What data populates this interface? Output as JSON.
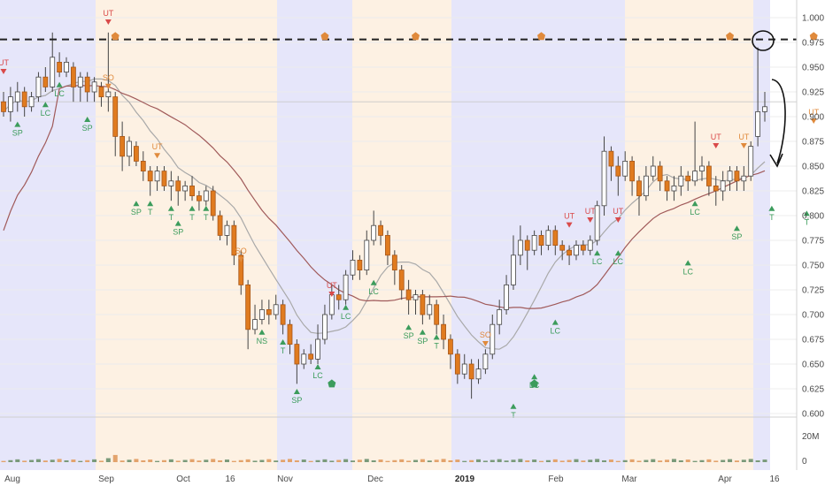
{
  "chart_data": {
    "type": "candlestick",
    "title": "",
    "y_ticks": [
      "1.000",
      "0.975",
      "0.950",
      "0.925",
      "0.900",
      "0.875",
      "0.850",
      "0.825",
      "0.800",
      "0.775",
      "0.750",
      "0.725",
      "0.700",
      "0.675",
      "0.650",
      "0.625",
      "0.600"
    ],
    "ylim": [
      0.6,
      1.0
    ],
    "volume_ticks": [
      "20M",
      "0"
    ],
    "x_ticks": [
      "Aug",
      "Sep",
      "Oct",
      "16",
      "Nov",
      "Dec",
      "2019",
      "Feb",
      "Mar",
      "Apr",
      "16"
    ],
    "resistance_level": 0.978,
    "candles": [
      [
        0.915,
        0.905,
        0.925,
        0.9
      ],
      [
        0.905,
        0.92,
        0.93,
        0.895
      ],
      [
        0.915,
        0.925,
        0.935,
        0.905
      ],
      [
        0.925,
        0.91,
        0.93,
        0.9
      ],
      [
        0.91,
        0.92,
        0.925,
        0.905
      ],
      [
        0.92,
        0.94,
        0.945,
        0.915
      ],
      [
        0.94,
        0.93,
        0.95,
        0.925
      ],
      [
        0.93,
        0.96,
        0.985,
        0.925
      ],
      [
        0.955,
        0.945,
        0.965,
        0.94
      ],
      [
        0.945,
        0.955,
        0.96,
        0.94
      ],
      [
        0.95,
        0.93,
        0.955,
        0.915
      ],
      [
        0.93,
        0.94,
        0.945,
        0.915
      ],
      [
        0.94,
        0.925,
        0.945,
        0.915
      ],
      [
        0.925,
        0.935,
        0.94,
        0.915
      ],
      [
        0.93,
        0.92,
        0.935,
        0.91
      ],
      [
        0.92,
        0.925,
        0.985,
        0.905
      ],
      [
        0.92,
        0.88,
        0.925,
        0.86
      ],
      [
        0.88,
        0.86,
        0.895,
        0.845
      ],
      [
        0.86,
        0.875,
        0.88,
        0.85
      ],
      [
        0.87,
        0.855,
        0.875,
        0.85
      ],
      [
        0.855,
        0.845,
        0.865,
        0.835
      ],
      [
        0.845,
        0.835,
        0.85,
        0.82
      ],
      [
        0.835,
        0.845,
        0.85,
        0.825
      ],
      [
        0.845,
        0.83,
        0.85,
        0.825
      ],
      [
        0.83,
        0.835,
        0.845,
        0.815
      ],
      [
        0.835,
        0.825,
        0.84,
        0.81
      ],
      [
        0.825,
        0.83,
        0.835,
        0.815
      ],
      [
        0.83,
        0.82,
        0.84,
        0.815
      ],
      [
        0.82,
        0.815,
        0.825,
        0.805
      ],
      [
        0.815,
        0.825,
        0.83,
        0.81
      ],
      [
        0.825,
        0.8,
        0.83,
        0.795
      ],
      [
        0.8,
        0.78,
        0.805,
        0.775
      ],
      [
        0.78,
        0.79,
        0.795,
        0.77
      ],
      [
        0.79,
        0.76,
        0.795,
        0.75
      ],
      [
        0.76,
        0.73,
        0.765,
        0.72
      ],
      [
        0.73,
        0.685,
        0.735,
        0.665
      ],
      [
        0.685,
        0.695,
        0.71,
        0.68
      ],
      [
        0.695,
        0.705,
        0.715,
        0.69
      ],
      [
        0.705,
        0.7,
        0.715,
        0.69
      ],
      [
        0.7,
        0.71,
        0.72,
        0.695
      ],
      [
        0.71,
        0.69,
        0.715,
        0.68
      ],
      [
        0.69,
        0.67,
        0.695,
        0.66
      ],
      [
        0.67,
        0.65,
        0.675,
        0.63
      ],
      [
        0.65,
        0.66,
        0.665,
        0.645
      ],
      [
        0.66,
        0.655,
        0.67,
        0.65
      ],
      [
        0.655,
        0.675,
        0.69,
        0.65
      ],
      [
        0.675,
        0.7,
        0.71,
        0.67
      ],
      [
        0.7,
        0.72,
        0.73,
        0.695
      ],
      [
        0.72,
        0.715,
        0.73,
        0.705
      ],
      [
        0.715,
        0.74,
        0.745,
        0.71
      ],
      [
        0.74,
        0.755,
        0.765,
        0.735
      ],
      [
        0.755,
        0.745,
        0.76,
        0.735
      ],
      [
        0.745,
        0.775,
        0.785,
        0.74
      ],
      [
        0.775,
        0.79,
        0.805,
        0.77
      ],
      [
        0.79,
        0.78,
        0.795,
        0.77
      ],
      [
        0.78,
        0.76,
        0.785,
        0.75
      ],
      [
        0.76,
        0.745,
        0.765,
        0.73
      ],
      [
        0.745,
        0.725,
        0.75,
        0.715
      ],
      [
        0.725,
        0.715,
        0.735,
        0.7
      ],
      [
        0.715,
        0.72,
        0.725,
        0.7
      ],
      [
        0.72,
        0.7,
        0.725,
        0.69
      ],
      [
        0.7,
        0.71,
        0.72,
        0.695
      ],
      [
        0.71,
        0.69,
        0.715,
        0.68
      ],
      [
        0.69,
        0.675,
        0.7,
        0.665
      ],
      [
        0.675,
        0.66,
        0.68,
        0.645
      ],
      [
        0.66,
        0.64,
        0.665,
        0.63
      ],
      [
        0.64,
        0.65,
        0.66,
        0.635
      ],
      [
        0.65,
        0.635,
        0.655,
        0.615
      ],
      [
        0.635,
        0.645,
        0.655,
        0.63
      ],
      [
        0.645,
        0.66,
        0.665,
        0.64
      ],
      [
        0.66,
        0.69,
        0.7,
        0.655
      ],
      [
        0.69,
        0.705,
        0.715,
        0.68
      ],
      [
        0.705,
        0.73,
        0.74,
        0.7
      ],
      [
        0.73,
        0.76,
        0.78,
        0.725
      ],
      [
        0.76,
        0.775,
        0.79,
        0.75
      ],
      [
        0.775,
        0.765,
        0.78,
        0.745
      ],
      [
        0.765,
        0.78,
        0.785,
        0.76
      ],
      [
        0.78,
        0.77,
        0.785,
        0.76
      ],
      [
        0.77,
        0.785,
        0.79,
        0.765
      ],
      [
        0.785,
        0.77,
        0.79,
        0.76
      ],
      [
        0.77,
        0.765,
        0.775,
        0.755
      ],
      [
        0.765,
        0.76,
        0.77,
        0.75
      ],
      [
        0.76,
        0.77,
        0.775,
        0.755
      ],
      [
        0.77,
        0.765,
        0.775,
        0.76
      ],
      [
        0.765,
        0.775,
        0.78,
        0.76
      ],
      [
        0.775,
        0.81,
        0.815,
        0.77
      ],
      [
        0.81,
        0.865,
        0.88,
        0.8
      ],
      [
        0.865,
        0.85,
        0.87,
        0.835
      ],
      [
        0.85,
        0.84,
        0.86,
        0.82
      ],
      [
        0.84,
        0.855,
        0.865,
        0.835
      ],
      [
        0.855,
        0.835,
        0.86,
        0.82
      ],
      [
        0.835,
        0.82,
        0.84,
        0.8
      ],
      [
        0.82,
        0.84,
        0.85,
        0.815
      ],
      [
        0.84,
        0.85,
        0.86,
        0.835
      ],
      [
        0.85,
        0.835,
        0.855,
        0.825
      ],
      [
        0.835,
        0.825,
        0.84,
        0.815
      ],
      [
        0.825,
        0.83,
        0.84,
        0.815
      ],
      [
        0.83,
        0.84,
        0.85,
        0.82
      ],
      [
        0.84,
        0.835,
        0.845,
        0.825
      ],
      [
        0.835,
        0.845,
        0.895,
        0.83
      ],
      [
        0.845,
        0.85,
        0.86,
        0.835
      ],
      [
        0.85,
        0.83,
        0.855,
        0.82
      ],
      [
        0.83,
        0.825,
        0.84,
        0.81
      ],
      [
        0.825,
        0.835,
        0.845,
        0.815
      ],
      [
        0.835,
        0.845,
        0.85,
        0.825
      ],
      [
        0.845,
        0.835,
        0.85,
        0.825
      ],
      [
        0.835,
        0.84,
        0.85,
        0.825
      ],
      [
        0.84,
        0.87,
        0.875,
        0.835
      ],
      [
        0.88,
        0.905,
        0.97,
        0.87
      ],
      [
        0.905,
        0.91,
        0.925,
        0.895
      ]
    ],
    "up_color": "#4d4d4d",
    "down_color": "#e07b1f",
    "ma_short_color": "#a9a9a9",
    "ma_long_color": "#a05a5a",
    "bg_blue": "#e6e6fa",
    "bg_orange": "#fdf1e3",
    "markers": [
      {
        "text": "UT",
        "kind": "down",
        "color": "#d94a4a",
        "i": 0,
        "v": 0.95
      },
      {
        "text": "SP",
        "kind": "up",
        "color": "#3c9c5c",
        "i": 2,
        "v": 0.895
      },
      {
        "text": "LC",
        "kind": "up",
        "color": "#3c9c5c",
        "i": 6,
        "v": 0.915
      },
      {
        "text": "LC",
        "kind": "up",
        "color": "#3c9c5c",
        "i": 8,
        "v": 0.935
      },
      {
        "text": "SP",
        "kind": "up",
        "color": "#3c9c5c",
        "i": 12,
        "v": 0.9
      },
      {
        "text": "UT",
        "kind": "down",
        "color": "#d94a4a",
        "i": 15,
        "v": 1.0
      },
      {
        "text": "SO",
        "kind": "down",
        "color": "#e08a3c",
        "i": 15,
        "v": 0.935
      },
      {
        "text": "UT",
        "kind": "down",
        "color": "#e08a3c",
        "i": 22,
        "v": 0.865
      },
      {
        "text": "SP",
        "kind": "up",
        "color": "#3c9c5c",
        "i": 19,
        "v": 0.815
      },
      {
        "text": "T",
        "kind": "up",
        "color": "#3c9c5c",
        "i": 21,
        "v": 0.815
      },
      {
        "text": "T",
        "kind": "up",
        "color": "#3c9c5c",
        "i": 24,
        "v": 0.81
      },
      {
        "text": "SP",
        "kind": "up",
        "color": "#3c9c5c",
        "i": 25,
        "v": 0.795
      },
      {
        "text": "T",
        "kind": "up",
        "color": "#3c9c5c",
        "i": 27,
        "v": 0.81
      },
      {
        "text": "T",
        "kind": "up",
        "color": "#3c9c5c",
        "i": 29,
        "v": 0.81
      },
      {
        "text": "SO",
        "kind": "down",
        "color": "#e08a3c",
        "i": 34,
        "v": 0.76
      },
      {
        "text": "NS",
        "kind": "up",
        "color": "#3c9c5c",
        "i": 37,
        "v": 0.685
      },
      {
        "text": "T",
        "kind": "up",
        "color": "#3c9c5c",
        "i": 40,
        "v": 0.675
      },
      {
        "text": "SP",
        "kind": "up",
        "color": "#3c9c5c",
        "i": 42,
        "v": 0.625
      },
      {
        "text": "LC",
        "kind": "up",
        "color": "#3c9c5c",
        "i": 45,
        "v": 0.65
      },
      {
        "text": "UT",
        "kind": "down",
        "color": "#d94a4a",
        "i": 47,
        "v": 0.725
      },
      {
        "text": "LC",
        "kind": "up",
        "color": "#3c9c5c",
        "i": 49,
        "v": 0.71
      },
      {
        "text": "LC",
        "kind": "up",
        "color": "#3c9c5c",
        "i": 53,
        "v": 0.735
      },
      {
        "text": "SP",
        "kind": "up",
        "color": "#3c9c5c",
        "i": 58,
        "v": 0.69
      },
      {
        "text": "SP",
        "kind": "up",
        "color": "#3c9c5c",
        "i": 60,
        "v": 0.685
      },
      {
        "text": "T",
        "kind": "up",
        "color": "#3c9c5c",
        "i": 62,
        "v": 0.68
      },
      {
        "text": "SO",
        "kind": "down",
        "color": "#e08a3c",
        "i": 69,
        "v": 0.675
      },
      {
        "text": "T",
        "kind": "up",
        "color": "#3c9c5c",
        "i": 73,
        "v": 0.61
      },
      {
        "text": "LC",
        "kind": "up",
        "color": "#3c9c5c",
        "i": 76,
        "v": 0.64
      },
      {
        "text": "LC",
        "kind": "up",
        "color": "#3c9c5c",
        "i": 79,
        "v": 0.695
      },
      {
        "text": "UT",
        "kind": "down",
        "color": "#d94a4a",
        "i": 81,
        "v": 0.795
      },
      {
        "text": "UT",
        "kind": "down",
        "color": "#d94a4a",
        "i": 84,
        "v": 0.8
      },
      {
        "text": "LC",
        "kind": "up",
        "color": "#3c9c5c",
        "i": 85,
        "v": 0.765
      },
      {
        "text": "UT",
        "kind": "down",
        "color": "#d94a4a",
        "i": 88,
        "v": 0.8
      },
      {
        "text": "LC",
        "kind": "up",
        "color": "#3c9c5c",
        "i": 88,
        "v": 0.765
      },
      {
        "text": "LC",
        "kind": "up",
        "color": "#3c9c5c",
        "i": 98,
        "v": 0.755
      },
      {
        "text": "LC",
        "kind": "up",
        "color": "#3c9c5c",
        "i": 99,
        "v": 0.815
      },
      {
        "text": "UT",
        "kind": "down",
        "color": "#d94a4a",
        "i": 102,
        "v": 0.875
      },
      {
        "text": "UT",
        "kind": "down",
        "color": "#e08a3c",
        "i": 106,
        "v": 0.875
      },
      {
        "text": "SP",
        "kind": "up",
        "color": "#3c9c5c",
        "i": 105,
        "v": 0.79
      },
      {
        "text": "T",
        "kind": "up",
        "color": "#3c9c5c",
        "i": 110,
        "v": 0.81
      },
      {
        "text": "T",
        "kind": "up",
        "color": "#3c9c5c",
        "i": 115,
        "v": 0.805
      },
      {
        "text": "UT",
        "kind": "down",
        "color": "#e08a3c",
        "i": 116,
        "v": 0.9
      },
      {
        "text": "LC",
        "kind": "up",
        "color": "#3c9c5c",
        "i": 126,
        "v": 0.825
      },
      {
        "text": "T",
        "kind": "up",
        "color": "#3c9c5c",
        "i": 128,
        "v": 0.9
      }
    ],
    "pentagons": [
      {
        "color": "#e08a3c",
        "i": 16,
        "v": 0.981
      },
      {
        "color": "#e08a3c",
        "i": 46,
        "v": 0.981
      },
      {
        "color": "#e08a3c",
        "i": 59,
        "v": 0.981
      },
      {
        "color": "#e08a3c",
        "i": 77,
        "v": 0.981
      },
      {
        "color": "#e08a3c",
        "i": 104,
        "v": 0.981
      },
      {
        "color": "#e08a3c",
        "i": 116,
        "v": 0.981
      },
      {
        "color": "#3c9c5c",
        "i": 47,
        "v": 0.63
      },
      {
        "color": "#3c9c5c",
        "i": 76,
        "v": 0.63
      },
      {
        "color": "#3c9c5c",
        "i": 127,
        "v": 0.63
      }
    ]
  }
}
